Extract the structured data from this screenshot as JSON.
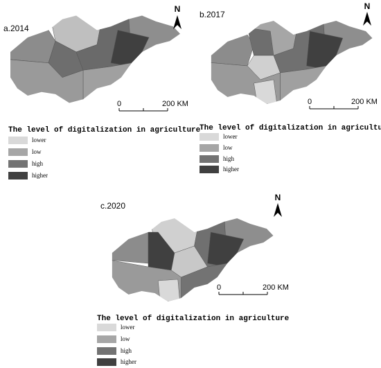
{
  "panels": [
    {
      "label": "a.2014",
      "north": "N",
      "scale": {
        "start": "0",
        "end": "200 KM"
      },
      "legend": {
        "title": "The level of digitalization in agriculture",
        "items": [
          "lower",
          "low",
          "high",
          "higher"
        ]
      }
    },
    {
      "label": "b.2017",
      "north": "N",
      "scale": {
        "start": "0",
        "end": "200 KM"
      },
      "legend": {
        "title": "The level of digitalization in agriculture",
        "items": [
          "lower",
          "low",
          "high",
          "higher"
        ]
      }
    },
    {
      "label": "c.2020",
      "north": "N",
      "scale": {
        "start": "0",
        "end": "200 KM"
      },
      "legend": {
        "title": "The level of digitalization in agriculture",
        "items": [
          "lower",
          "low",
          "high",
          "higher"
        ]
      }
    }
  ]
}
